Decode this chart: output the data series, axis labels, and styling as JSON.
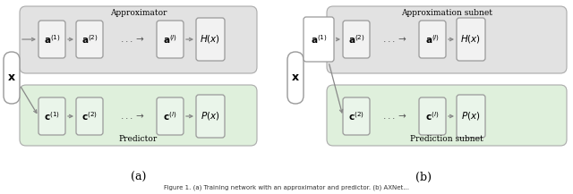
{
  "fig_width": 6.4,
  "fig_height": 2.17,
  "dpi": 100,
  "bg_color": "#ffffff",
  "gray_bg": "#e2e2e2",
  "green_bg": "#dff0dc",
  "gray_border": "#aaaaaa",
  "green_border": "#aaaaaa",
  "node_fill_gray": "#f2f2f2",
  "node_fill_green": "#eaf5ea",
  "node_fill_white": "#ffffff",
  "node_border": "#999999",
  "arrow_color": "#888888",
  "text_color": "#111111",
  "caption_a": "(a)",
  "caption_b": "(b)",
  "approx_label_a": "Approximator",
  "predict_label_a": "Predictor",
  "approx_label_b": "Approximation subnet",
  "predict_label_b": "Prediction subnet",
  "font_size_label": 6.5,
  "font_size_caption": 9,
  "font_size_math": 7.5,
  "font_size_x": 9,
  "font_size_bottom": 5.0
}
